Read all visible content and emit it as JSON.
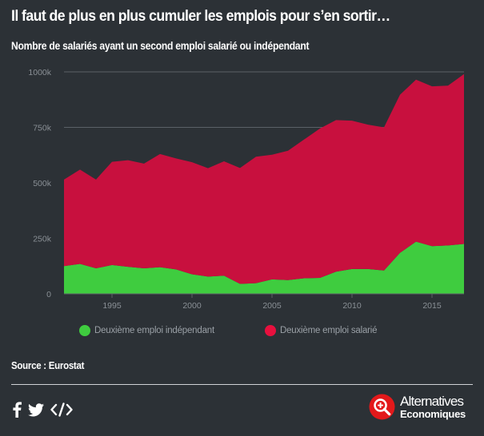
{
  "header": {
    "title": "Il faut de plus en plus cumuler les emplois pour s’en sortir…",
    "subtitle": "Nombre de salariés ayant un second emploi salarié ou indépendant"
  },
  "footer": {
    "source": "Source : Eurostat",
    "brand_line1": "Alternatives",
    "brand_line2": "Economiques"
  },
  "icons": {
    "facebook": "facebook-icon",
    "twitter": "twitter-icon",
    "embed": "embed-code-icon",
    "brand": "alternatives-economiques-logo"
  },
  "colors": {
    "background": "#2c3136",
    "independant": "#3fcc3f",
    "salarie": "#c8103e",
    "grid": "#5b6167",
    "tick": "#8a9096"
  },
  "chart_data": {
    "type": "area",
    "stacked": true,
    "x": [
      1992,
      1993,
      1994,
      1995,
      1996,
      1997,
      1998,
      1999,
      2000,
      2001,
      2002,
      2003,
      2004,
      2005,
      2006,
      2007,
      2008,
      2009,
      2010,
      2011,
      2012,
      2013,
      2014,
      2015,
      2016,
      2017
    ],
    "series": [
      {
        "name": "Deuxième emploi indépendant",
        "color": "#3fcc3f",
        "values": [
          125000,
          135000,
          115000,
          130000,
          122000,
          115000,
          120000,
          110000,
          88000,
          78000,
          82000,
          45000,
          48000,
          65000,
          62000,
          70000,
          72000,
          100000,
          112000,
          112000,
          105000,
          185000,
          235000,
          215000,
          218000,
          225000
        ]
      },
      {
        "name": "Deuxième emploi salarié",
        "color": "#c8103e",
        "values": [
          390000,
          425000,
          400000,
          465000,
          480000,
          472000,
          510000,
          500000,
          505000,
          488000,
          515000,
          522000,
          570000,
          562000,
          583000,
          625000,
          673000,
          683000,
          668000,
          650000,
          645000,
          712000,
          730000,
          720000,
          720000,
          765000
        ]
      }
    ],
    "xticks": [
      1995,
      2000,
      2005,
      2010,
      2015
    ],
    "yticks": [
      0,
      250000,
      500000,
      750000,
      1000000
    ],
    "ytick_labels": [
      "0",
      "250k",
      "500k",
      "750k",
      "1000k"
    ],
    "xlim": [
      1992,
      2017
    ],
    "ylim": [
      0,
      1000000
    ],
    "grid": "horizontal",
    "legend_position": "bottom"
  }
}
